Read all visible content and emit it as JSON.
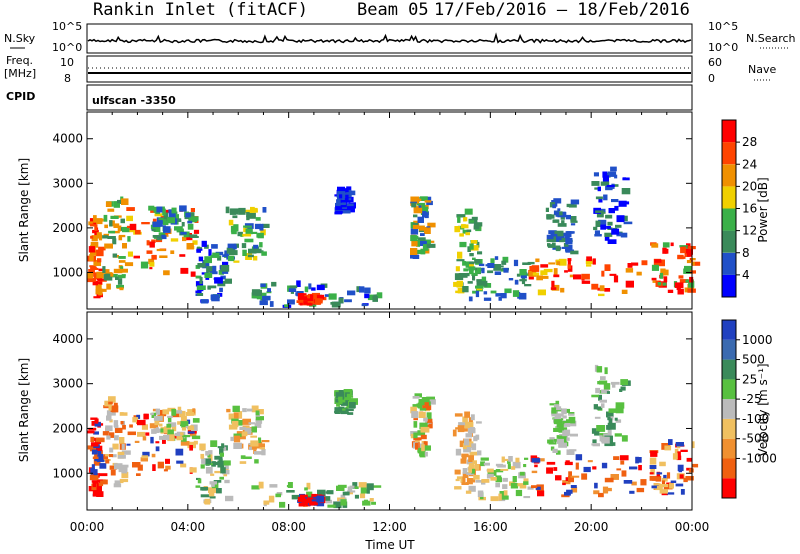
{
  "header": {
    "title": "Rankin Inlet (fitACF)",
    "beam": "Beam 05",
    "dates": "17/Feb/2016 – 18/Feb/2016"
  },
  "noise_panel": {
    "left_label": "N.Sky",
    "right_label": "N.Search",
    "left_ticks": [
      "10^5",
      "10^0"
    ],
    "right_ticks": [
      "10^5",
      "10^0"
    ]
  },
  "freq_panel": {
    "left_label_line1": "Freq.",
    "left_label_line2": "[MHz]",
    "left_ticks": [
      "10",
      "8"
    ],
    "right_label": "Nave",
    "right_ticks": [
      "60",
      "0"
    ],
    "cpid_label": "CPID",
    "cpid_value": "ulfscan -3350"
  },
  "colors": {
    "power": [
      "#0000ff",
      "#2050c8",
      "#3a8a5a",
      "#3ab048",
      "#f0d000",
      "#f09000",
      "#ff4400",
      "#ff0000"
    ],
    "velocity": [
      "#2040c0",
      "#3a6ab0",
      "#3a8a5a",
      "#58c040",
      "#bbbbbb",
      "#f0c060",
      "#f09030",
      "#f06010",
      "#ff0000"
    ]
  },
  "chart_data": [
    {
      "type": "heatmap",
      "name": "power",
      "ylabel": "Slant Range [km]",
      "xlabel": "Time UT",
      "x_ticks": [
        "00:00",
        "04:00",
        "08:00",
        "12:00",
        "16:00",
        "20:00",
        "00:00"
      ],
      "x_range_hours": [
        0,
        24
      ],
      "ylim": [
        180,
        4600
      ],
      "y_ticks": [
        "1000",
        "2000",
        "3000",
        "4000"
      ],
      "colorbar": {
        "label": "Power [dB]",
        "ticks": [
          "4",
          "8",
          "12",
          "16",
          "20",
          "24",
          "28"
        ]
      }
    },
    {
      "type": "heatmap",
      "name": "velocity",
      "ylabel": "Slant Range [km]",
      "xlabel": "Time UT",
      "x_ticks": [
        "00:00",
        "04:00",
        "08:00",
        "12:00",
        "16:00",
        "20:00",
        "00:00"
      ],
      "x_range_hours": [
        0,
        24
      ],
      "ylim": [
        180,
        4600
      ],
      "y_ticks": [
        "1000",
        "2000",
        "3000",
        "4000"
      ],
      "colorbar": {
        "label": "Velocity [m s⁻¹]",
        "ticks": [
          "1000",
          "500",
          "25",
          "-25",
          "-100",
          "-500",
          "-1000"
        ]
      }
    }
  ]
}
